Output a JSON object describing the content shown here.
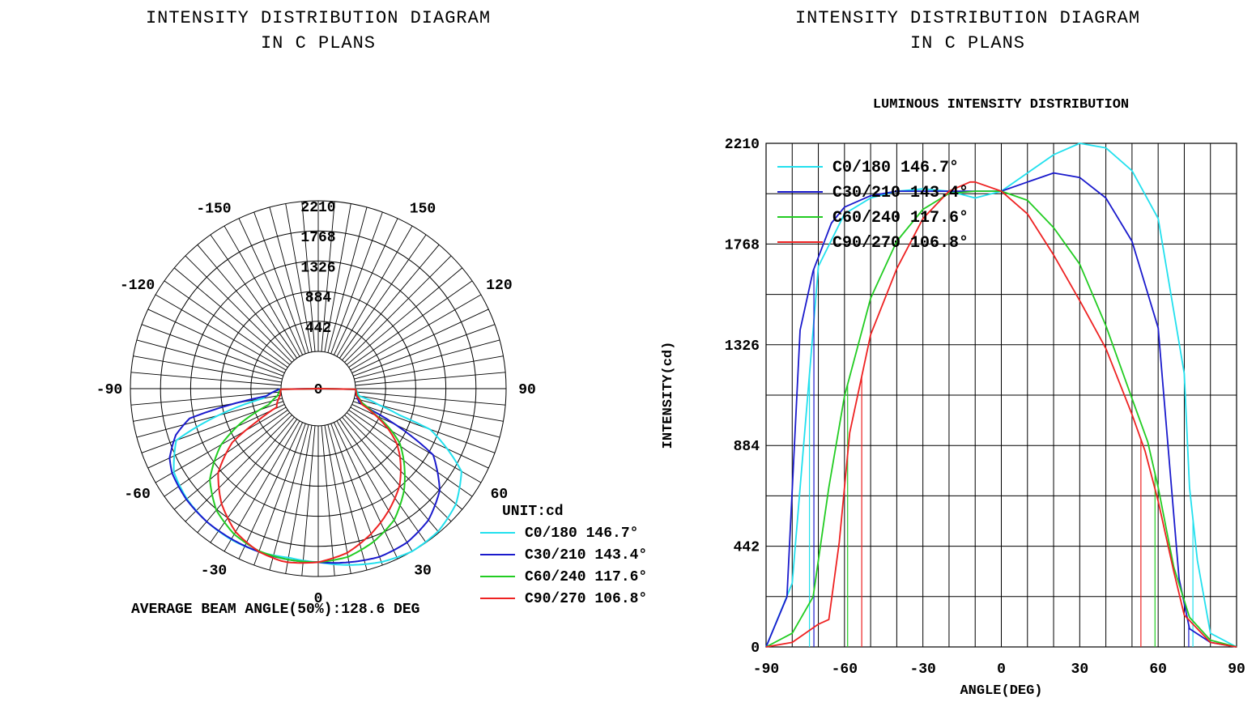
{
  "colors": {
    "c0": "#22e0ee",
    "c30": "#1a1acc",
    "c60": "#22cc22",
    "c90": "#ee2222",
    "grid": "#000000"
  },
  "left": {
    "title_line1": "INTENSITY DISTRIBUTION DIAGRAM",
    "title_line2": "IN C PLANS",
    "unit": "UNIT:cd",
    "average_beam": "AVERAGE BEAM ANGLE(50%):128.6 DEG"
  },
  "right": {
    "title_line1": "INTENSITY DISTRIBUTION DIAGRAM",
    "title_line2": "IN C PLANS",
    "subtitle": "LUMINOUS INTENSITY DISTRIBUTION"
  },
  "chart_data": [
    {
      "type": "polar",
      "title": "INTENSITY DISTRIBUTION DIAGRAM IN C PLANS",
      "unit": "UNIT:cd",
      "rmax": 2210,
      "radial_ticks": [
        "2210",
        "1768",
        "1326",
        "884",
        "442",
        "0"
      ],
      "angle_labels": [
        "0",
        "30",
        "60",
        "90",
        "120",
        "150",
        "-150",
        "-120",
        "-90",
        "-60",
        "-30"
      ],
      "angle_values": [
        0,
        30,
        60,
        90,
        120,
        150,
        -150,
        -120,
        -90,
        -60,
        -30
      ],
      "footer": "AVERAGE BEAM ANGLE(50%):128.6 DEG",
      "legend": [
        {
          "label": "C0/180",
          "beam": "146.7°"
        },
        {
          "label": "C30/210",
          "beam": "143.4°"
        },
        {
          "label": "C60/240",
          "beam": "117.6°"
        },
        {
          "label": "C90/270",
          "beam": "106.8°"
        }
      ]
    },
    {
      "type": "line",
      "title": "LUMINOUS INTENSITY DISTRIBUTION",
      "xlabel": "ANGLE(DEG)",
      "ylabel": "INTENSITY(cd)",
      "xlim": [
        -90,
        90
      ],
      "ylim": [
        0,
        2210
      ],
      "xticks": [
        "-90",
        "-60",
        "-30",
        "0",
        "30",
        "60",
        "90"
      ],
      "yticks": [
        "0",
        "442",
        "884",
        "1326",
        "1768",
        "2210"
      ],
      "grid": true,
      "legend_position": "top-left",
      "series": [
        {
          "name": "C0/180 146.7°",
          "x": [
            -90,
            -80,
            -70,
            -60,
            -50,
            -40,
            -30,
            -20,
            -10,
            0,
            10,
            20,
            30,
            40,
            50,
            60,
            70,
            72,
            75,
            80,
            90
          ],
          "values": [
            0,
            280,
            1670,
            1900,
            1970,
            2000,
            2010,
            2000,
            1970,
            2000,
            2080,
            2160,
            2210,
            2190,
            2090,
            1880,
            1200,
            700,
            380,
            60,
            0
          ],
          "beam_marks": [
            -73.4,
            73.3
          ]
        },
        {
          "name": "C30/210 143.4°",
          "x": [
            -90,
            -82,
            -77,
            -72,
            -65,
            -60,
            -50,
            -40,
            -30,
            -20,
            -10,
            0,
            10,
            20,
            25,
            30,
            40,
            50,
            60,
            68,
            72,
            80,
            90
          ],
          "values": [
            0,
            220,
            1390,
            1650,
            1860,
            1930,
            1980,
            2000,
            2000,
            2000,
            2000,
            2000,
            2040,
            2080,
            2070,
            2060,
            1970,
            1780,
            1400,
            300,
            80,
            20,
            0
          ],
          "beam_marks": [
            -71.7,
            71.7
          ]
        },
        {
          "name": "C60/240 117.6°",
          "x": [
            -90,
            -80,
            -72,
            -66,
            -60,
            -50,
            -40,
            -30,
            -20,
            -10,
            0,
            10,
            20,
            30,
            40,
            50,
            56,
            60,
            66,
            72,
            80,
            90
          ],
          "values": [
            0,
            60,
            220,
            700,
            1100,
            1530,
            1780,
            1920,
            1990,
            2000,
            2000,
            1960,
            1840,
            1680,
            1410,
            1090,
            900,
            700,
            350,
            130,
            30,
            0
          ],
          "beam_marks": [
            -58.8,
            58.8
          ]
        },
        {
          "name": "C90/270 106.8°",
          "x": [
            -90,
            -80,
            -70,
            -66,
            -62,
            -58,
            -50,
            -40,
            -30,
            -20,
            -12,
            -10,
            0,
            10,
            20,
            30,
            40,
            50,
            55,
            60,
            66,
            70,
            80,
            90
          ],
          "values": [
            0,
            20,
            100,
            120,
            460,
            940,
            1370,
            1660,
            1880,
            2000,
            2040,
            2040,
            2000,
            1900,
            1720,
            1520,
            1310,
            1020,
            860,
            640,
            330,
            140,
            20,
            0
          ],
          "beam_marks": [
            -53.4,
            53.4
          ]
        }
      ]
    }
  ]
}
